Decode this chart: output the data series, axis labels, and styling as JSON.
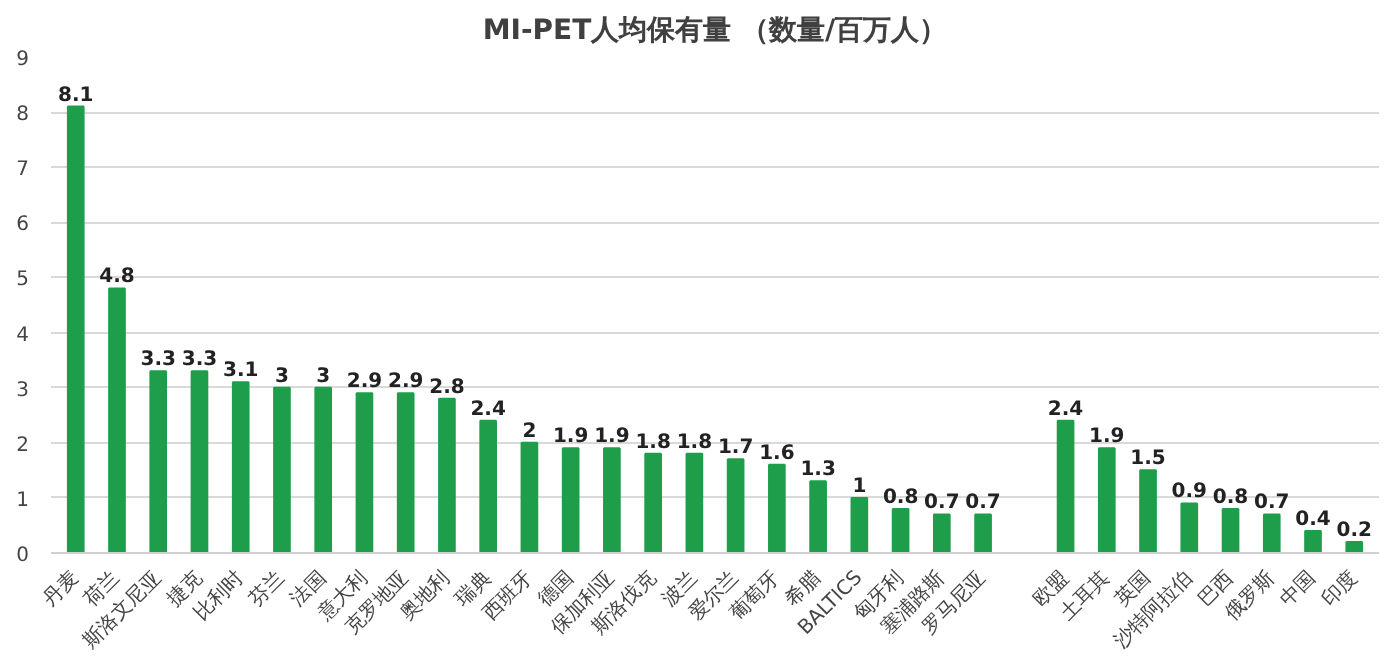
{
  "chart_data": {
    "type": "bar",
    "title": "MI-PET人均保有量 （数量/百万人）",
    "categories": [
      "丹麦",
      "荷兰",
      "斯洛文尼亚",
      "捷克",
      "比利时",
      "芬兰",
      "法国",
      "意大利",
      "克罗地亚",
      "奥地利",
      "瑞典",
      "西班牙",
      "德国",
      "保加利亚",
      "斯洛伐克",
      "波兰",
      "爱尔兰",
      "葡萄牙",
      "希腊",
      "BALTICS",
      "匈牙利",
      "塞浦路斯",
      "罗马尼亚",
      null,
      "欧盟",
      "土耳其",
      "英国",
      "沙特阿拉伯",
      "巴西",
      "俄罗斯",
      "中国",
      "印度"
    ],
    "values": [
      8.1,
      4.8,
      3.3,
      3.3,
      3.1,
      3,
      3,
      2.9,
      2.9,
      2.8,
      2.4,
      2,
      1.9,
      1.9,
      1.8,
      1.8,
      1.7,
      1.6,
      1.3,
      1,
      0.8,
      0.7,
      0.7,
      null,
      2.4,
      1.9,
      1.5,
      0.9,
      0.8,
      0.7,
      0.4,
      0.2
    ],
    "color": "#1e9e4a",
    "ylim": [
      0,
      9
    ],
    "yticks": [
      0,
      1,
      2,
      3,
      4,
      5,
      6,
      7,
      8,
      9
    ],
    "grid": "y",
    "data_labels": true
  }
}
